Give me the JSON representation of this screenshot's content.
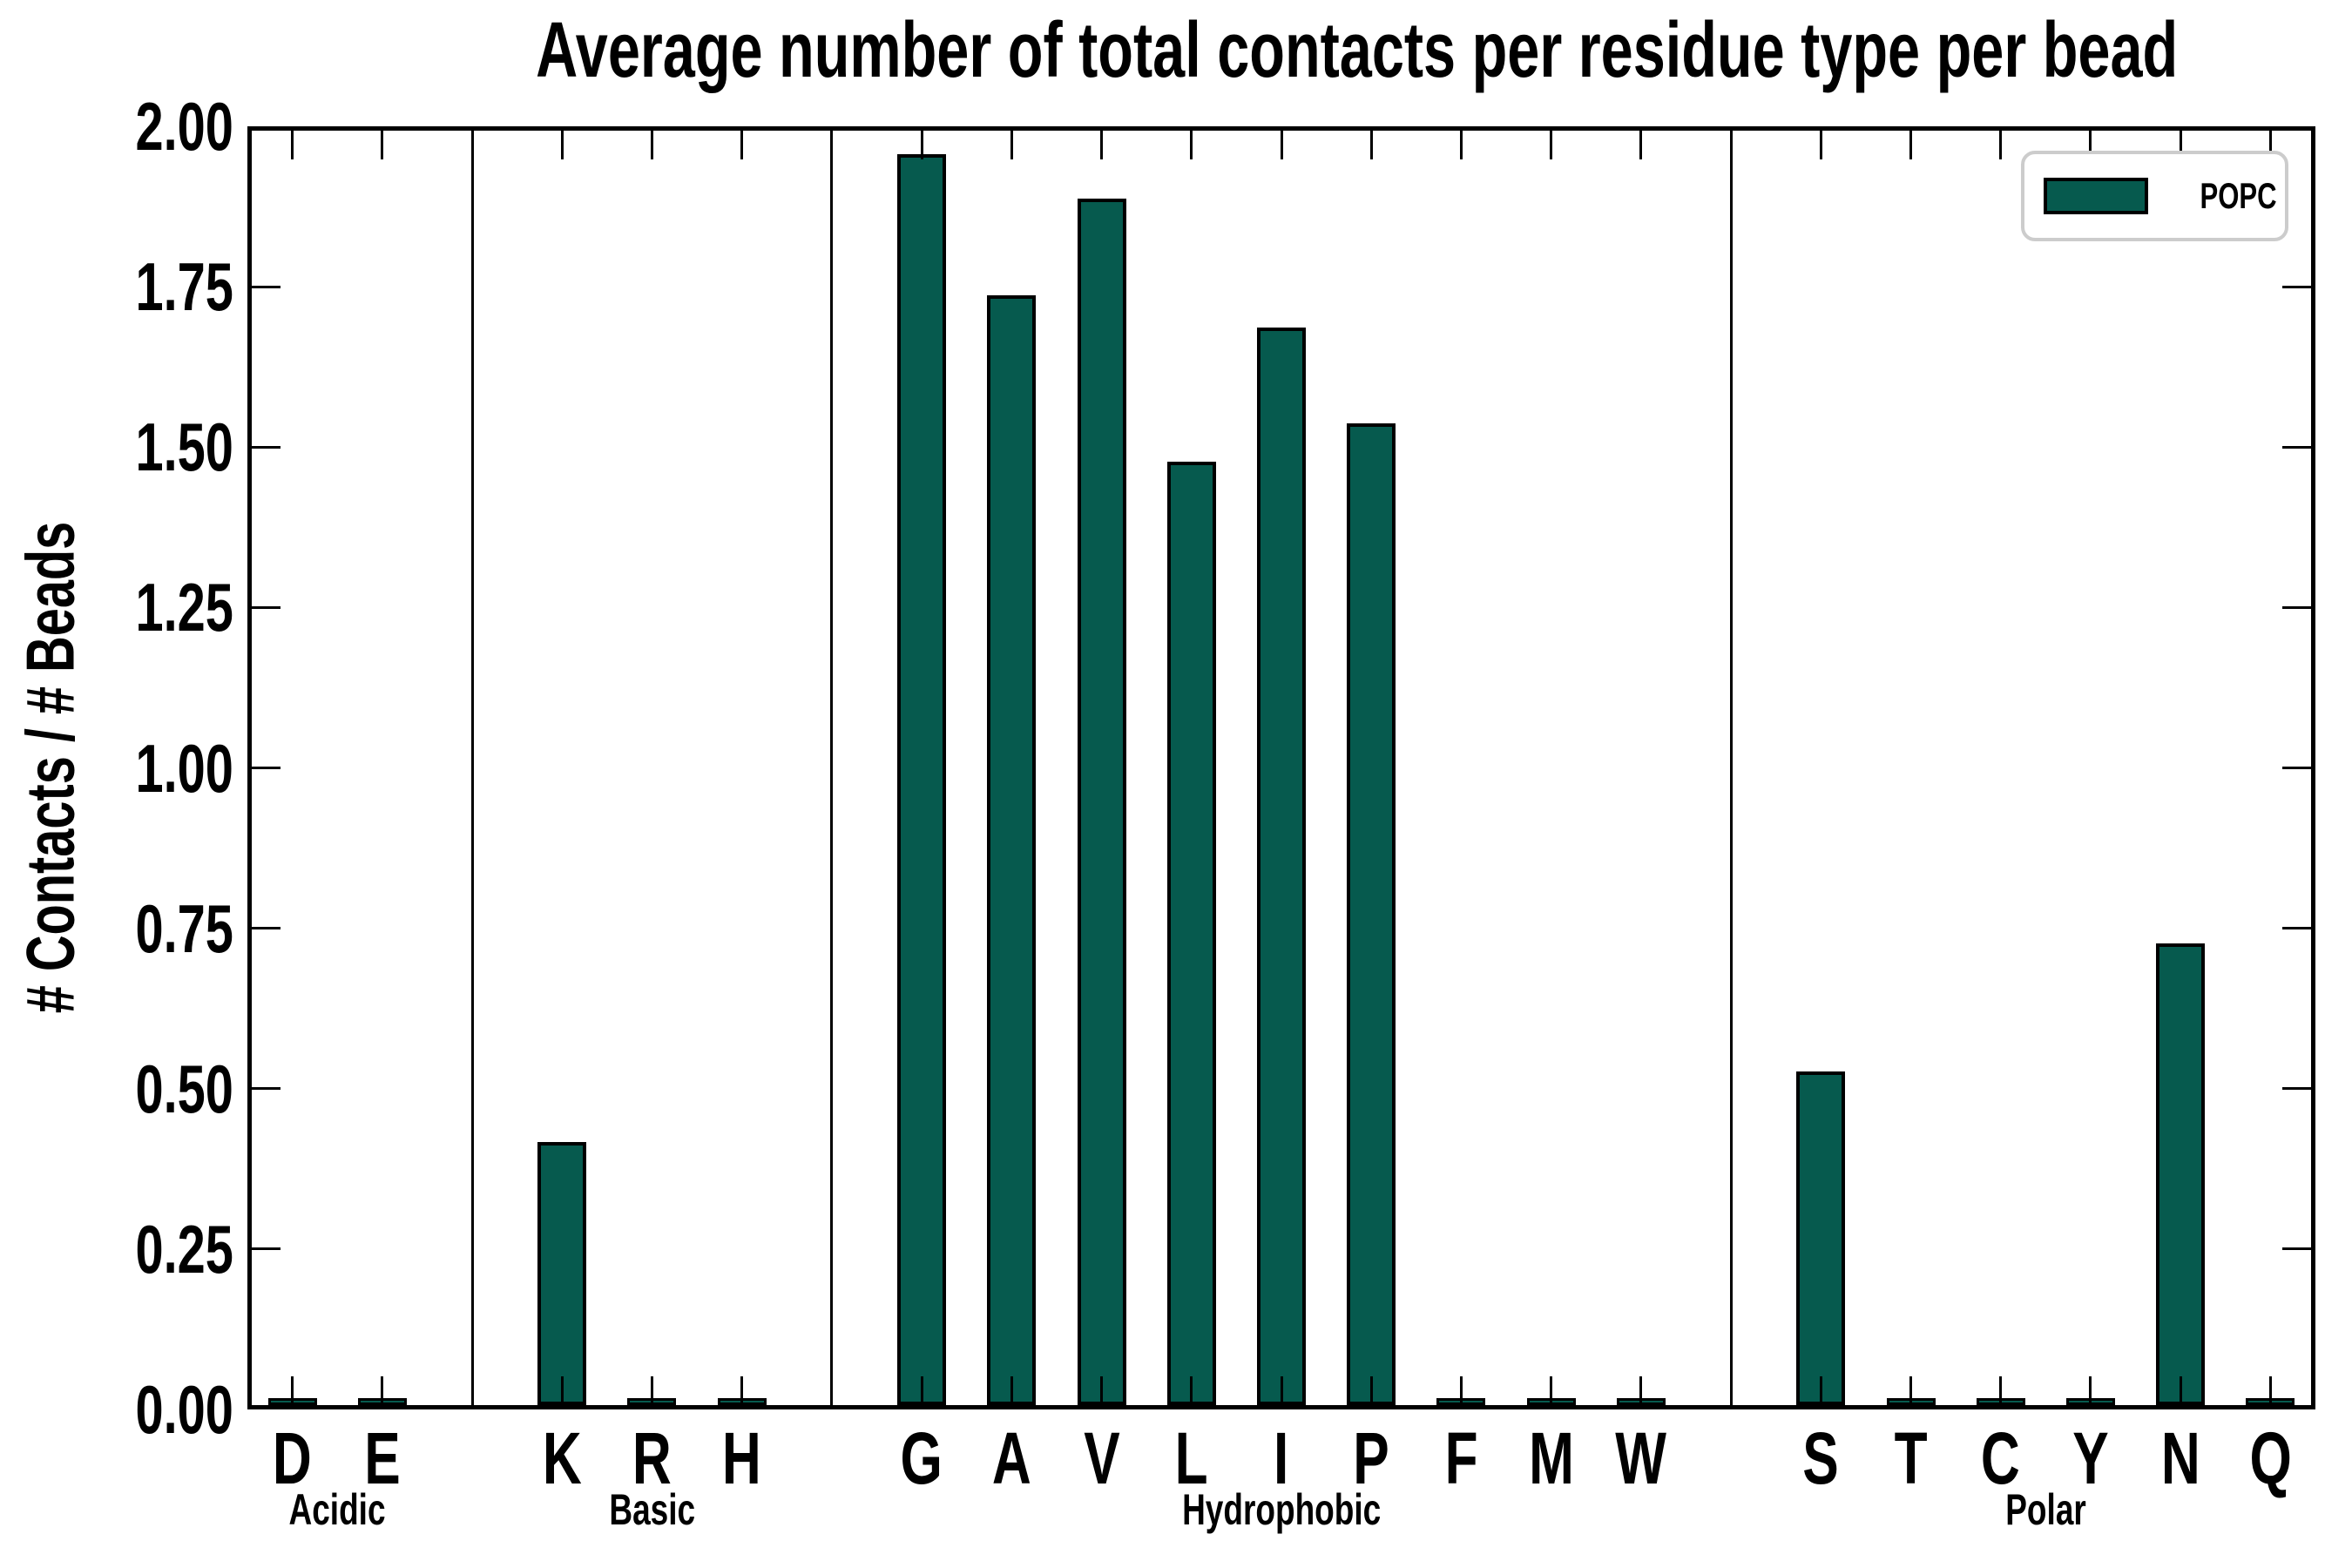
{
  "chart_data": {
    "type": "bar",
    "title": "Average number of total contacts per residue type per bead",
    "ylabel": "# Contacts / # Beads",
    "xlabel": "",
    "ylim": [
      0,
      2
    ],
    "ytick_labels": [
      "0.00",
      "0.25",
      "0.50",
      "0.75",
      "1.00",
      "1.25",
      "1.50",
      "1.75",
      "2.00"
    ],
    "grid": false,
    "legend": {
      "position": "upper right",
      "entries": [
        "POPC"
      ]
    },
    "categories": [
      "D",
      "E",
      "K",
      "R",
      "H",
      "G",
      "A",
      "V",
      "L",
      "I",
      "P",
      "F",
      "M",
      "W",
      "S",
      "T",
      "C",
      "Y",
      "N",
      "Q"
    ],
    "category_groups": [
      {
        "label": "Acidic",
        "count": 2
      },
      {
        "label": "Basic",
        "count": 3
      },
      {
        "label": "Hydrophobic",
        "count": 9
      },
      {
        "label": "Polar",
        "count": 6
      }
    ],
    "series": [
      {
        "name": "POPC",
        "values": [
          0,
          0,
          0.41,
          0,
          0,
          1.95,
          1.73,
          1.88,
          1.47,
          1.68,
          1.53,
          0,
          0,
          0,
          0.52,
          0,
          0,
          0,
          0.72,
          0
        ]
      }
    ]
  },
  "colors": {
    "bar_fill": "#065a4e",
    "bar_edge": "#000000",
    "axis": "#000000",
    "text": "#000000",
    "legend_border": "#cccccc",
    "background": "#ffffff"
  }
}
